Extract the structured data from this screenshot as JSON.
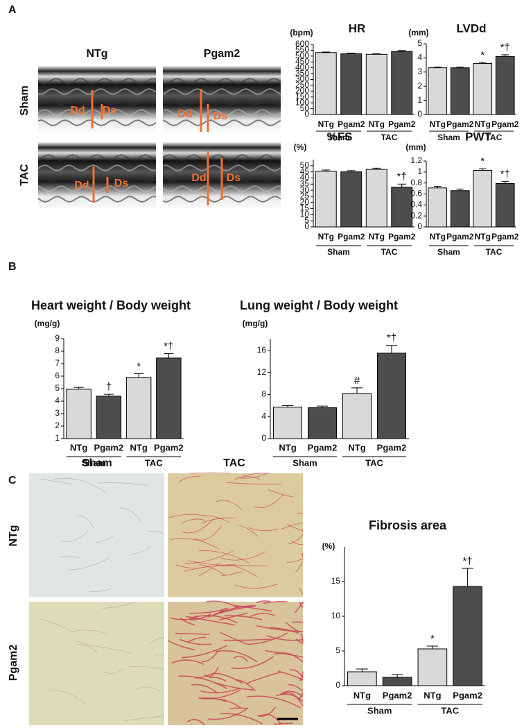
{
  "panels": [
    "A",
    "B",
    "C"
  ],
  "echo": {
    "columns": [
      "NTg",
      "Pgam2"
    ],
    "rows": [
      "Sham",
      "TAC"
    ],
    "markers": [
      "Dd",
      "Ds"
    ]
  },
  "histology": {
    "columns": [
      "Sham",
      "TAC"
    ],
    "rows": [
      "NTg",
      "Pgam2"
    ]
  },
  "chart_data": [
    {
      "type": "bar",
      "title": "HR",
      "y_label": "(bpm)",
      "categories": [
        "NTg",
        "Pgam2",
        "NTg",
        "Pgam2"
      ],
      "groups": [
        "Sham",
        "TAC"
      ],
      "values": [
        530,
        520,
        515,
        540
      ],
      "errors": [
        5,
        6,
        5,
        7
      ],
      "annotations": [
        null,
        null,
        null,
        null
      ],
      "colors": [
        "#d9d9d9",
        "#4d4d4d",
        "#d9d9d9",
        "#4d4d4d"
      ],
      "ylim": [
        0,
        600
      ],
      "yticks": [
        0,
        50,
        100,
        150,
        200,
        250,
        300,
        350,
        400,
        450,
        500,
        550,
        600
      ]
    },
    {
      "type": "bar",
      "title": "LVDd",
      "y_label": "(mm)",
      "categories": [
        "NTg",
        "Pgam2",
        "NTg",
        "Pgam2"
      ],
      "groups": [
        "Sham",
        "TAC"
      ],
      "values": [
        3.3,
        3.3,
        3.6,
        4.1
      ],
      "errors": [
        0.05,
        0.05,
        0.08,
        0.12
      ],
      "annotations": [
        null,
        null,
        "*",
        "*†"
      ],
      "colors": [
        "#d9d9d9",
        "#4d4d4d",
        "#d9d9d9",
        "#4d4d4d"
      ],
      "ylim": [
        0,
        5
      ],
      "yticks": [
        0,
        1,
        2,
        3,
        4,
        5
      ]
    },
    {
      "type": "bar",
      "title": "%FS",
      "y_label": "(%)",
      "categories": [
        "NTg",
        "Pgam2",
        "NTg",
        "Pgam2"
      ],
      "groups": [
        "Sham",
        "TAC"
      ],
      "values": [
        45.5,
        45,
        47,
        32.5
      ],
      "errors": [
        1,
        1,
        1,
        2.5
      ],
      "annotations": [
        null,
        null,
        null,
        "*†"
      ],
      "colors": [
        "#d9d9d9",
        "#4d4d4d",
        "#d9d9d9",
        "#4d4d4d"
      ],
      "ylim": [
        0,
        55
      ],
      "yticks": [
        0,
        5,
        10,
        15,
        20,
        25,
        30,
        35,
        40,
        45,
        50
      ]
    },
    {
      "type": "bar",
      "title": "PWT",
      "y_label": "(mm)",
      "categories": [
        "NTg",
        "Pgam2",
        "NTg",
        "Pgam2"
      ],
      "groups": [
        "Sham",
        "TAC"
      ],
      "values": [
        0.71,
        0.66,
        1.03,
        0.79
      ],
      "errors": [
        0.03,
        0.03,
        0.03,
        0.04
      ],
      "annotations": [
        null,
        null,
        "*",
        "*†"
      ],
      "colors": [
        "#d9d9d9",
        "#4d4d4d",
        "#d9d9d9",
        "#4d4d4d"
      ],
      "ylim": [
        0,
        1.2
      ],
      "yticks": [
        0,
        0.2,
        0.4,
        0.6,
        0.8,
        1,
        1.2
      ]
    },
    {
      "type": "bar",
      "title": "Heart weight / Body weight",
      "y_label": "(mg/g)",
      "categories": [
        "NTg",
        "Pgam2",
        "NTg",
        "Pgam2"
      ],
      "groups": [
        "Sham",
        "TAC"
      ],
      "values": [
        4.95,
        4.4,
        5.9,
        7.45
      ],
      "errors": [
        0.15,
        0.15,
        0.3,
        0.35
      ],
      "annotations": [
        null,
        "†",
        "*",
        "*†"
      ],
      "colors": [
        "#d9d9d9",
        "#4d4d4d",
        "#d9d9d9",
        "#4d4d4d"
      ],
      "ylim": [
        1,
        9
      ],
      "yticks": [
        1,
        2,
        3,
        4,
        5,
        6,
        7,
        8,
        9
      ]
    },
    {
      "type": "bar",
      "title": "Lung weight / Body weight",
      "y_label": "(mg/g)",
      "categories": [
        "NTg",
        "Pgam2",
        "NTg",
        "Pgam2"
      ],
      "groups": [
        "Sham",
        "TAC"
      ],
      "values": [
        5.7,
        5.6,
        8.2,
        15.5
      ],
      "errors": [
        0.3,
        0.3,
        1.0,
        1.4
      ],
      "annotations": [
        null,
        null,
        "#",
        "*†"
      ],
      "colors": [
        "#d9d9d9",
        "#4d4d4d",
        "#d9d9d9",
        "#4d4d4d"
      ],
      "ylim": [
        0,
        18
      ],
      "yticks": [
        0,
        4,
        8,
        12,
        16
      ]
    },
    {
      "type": "bar",
      "title": "Fibrosis area",
      "y_label": "(%)",
      "categories": [
        "NTg",
        "Pgam2",
        "NTg",
        "Pgam2"
      ],
      "groups": [
        "Sham",
        "TAC"
      ],
      "values": [
        2.0,
        1.2,
        5.3,
        14.3
      ],
      "errors": [
        0.4,
        0.4,
        0.4,
        2.6
      ],
      "annotations": [
        null,
        null,
        "*",
        "*†"
      ],
      "colors": [
        "#d9d9d9",
        "#4d4d4d",
        "#d9d9d9",
        "#4d4d4d"
      ],
      "ylim": [
        0,
        20
      ],
      "yticks": [
        0,
        5,
        10,
        15
      ]
    }
  ]
}
